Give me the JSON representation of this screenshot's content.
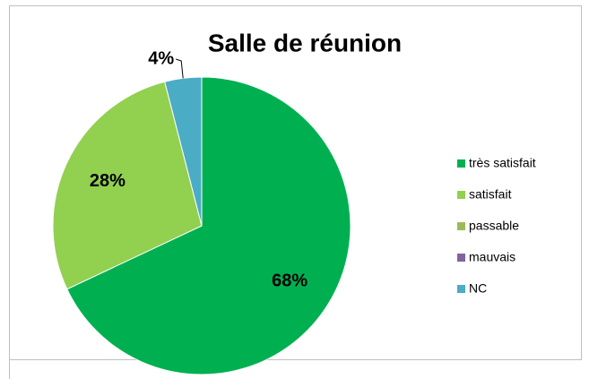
{
  "chart_data": {
    "type": "pie",
    "title": "Salle de réunion",
    "categories": [
      "très satisfait",
      "satisfait",
      "passable",
      "mauvais",
      "NC"
    ],
    "values": [
      68,
      28,
      0,
      0,
      4
    ],
    "value_labels": [
      "68%",
      "28%",
      null,
      null,
      "4%"
    ],
    "colors": [
      "#00b050",
      "#92d050",
      "#9bbb59",
      "#8064a2",
      "#4bacc6"
    ],
    "legend": "right"
  }
}
